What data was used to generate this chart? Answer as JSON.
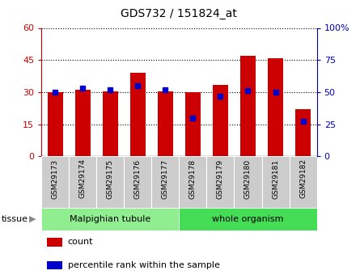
{
  "title": "GDS732 / 151824_at",
  "samples": [
    "GSM29173",
    "GSM29174",
    "GSM29175",
    "GSM29176",
    "GSM29177",
    "GSM29178",
    "GSM29179",
    "GSM29180",
    "GSM29181",
    "GSM29182"
  ],
  "counts": [
    30,
    31,
    30.5,
    39,
    30.5,
    30,
    33.5,
    47,
    46,
    22
  ],
  "percentiles": [
    50,
    53,
    52,
    55,
    52,
    30,
    47,
    51,
    50,
    27
  ],
  "tissue_groups": [
    {
      "label": "Malpighian tubule",
      "start": 0,
      "end": 5,
      "color": "#90EE90"
    },
    {
      "label": "whole organism",
      "start": 5,
      "end": 10,
      "color": "#44DD55"
    }
  ],
  "left_ylim": [
    0,
    60
  ],
  "right_ylim": [
    0,
    100
  ],
  "left_yticks": [
    0,
    15,
    30,
    45,
    60
  ],
  "right_yticks": [
    0,
    25,
    50,
    75,
    100
  ],
  "left_ytick_labels": [
    "0",
    "15",
    "30",
    "45",
    "60"
  ],
  "right_ytick_labels": [
    "0",
    "25",
    "50",
    "75",
    "100%"
  ],
  "bar_color": "#CC0000",
  "dot_color": "#0000CC",
  "grid_color": "#000000",
  "left_axis_color": "#CC0000",
  "right_axis_color": "#0000BB",
  "legend_count_label": "count",
  "legend_pct_label": "percentile rank within the sample",
  "tissue_label": "tissue",
  "bar_width": 0.55,
  "fig_width": 4.45,
  "fig_height": 3.45,
  "dpi": 100
}
